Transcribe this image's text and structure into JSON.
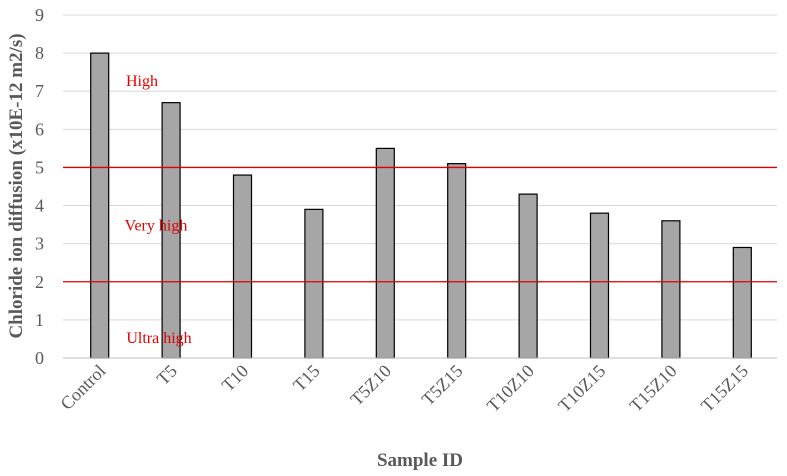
{
  "chart_data": {
    "type": "bar",
    "categories": [
      "Control",
      "T5",
      "T10",
      "T15",
      "T5Z10",
      "T5Z15",
      "T10Z10",
      "T10Z15",
      "T15Z10",
      "T15Z15"
    ],
    "values": [
      8.0,
      6.7,
      4.8,
      3.9,
      5.5,
      5.1,
      4.3,
      3.8,
      3.6,
      2.9
    ],
    "xlabel": "Sample ID",
    "ylabel": "Chloride ion diffusion (x10E-12 m2/s)",
    "ylim": [
      0,
      9
    ],
    "yticks": [
      "0",
      "1",
      "2",
      "3",
      "4",
      "5",
      "6",
      "7",
      "8",
      "9"
    ],
    "grid": true,
    "bar_color": "#a6a6a6",
    "threshold_lines": [
      {
        "value": 5,
        "color": "#e00000"
      },
      {
        "value": 2,
        "color": "#e00000"
      }
    ],
    "annotations": [
      {
        "text": "High",
        "color": "#e00000",
        "y": 7.3
      },
      {
        "text": "Very high",
        "color": "#e00000",
        "y": 3.5
      },
      {
        "text": "Ultra high",
        "color": "#e00000",
        "y": 0.55
      }
    ]
  }
}
